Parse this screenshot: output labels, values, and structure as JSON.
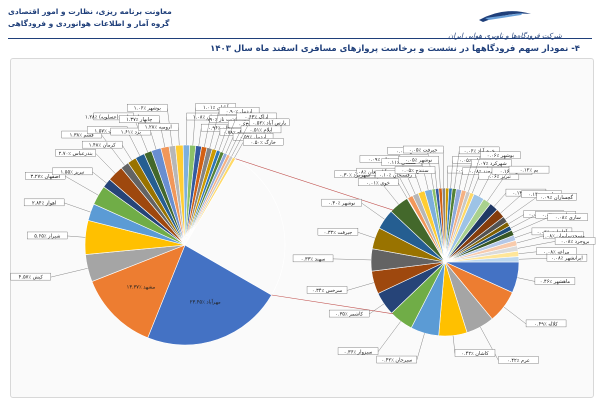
{
  "header": {
    "org_name": "شرکت فرودگاه‌ها و ناوبری هوایی ایران",
    "dept_line1": "معاونت برنامه ریزی، نظارت و امور اقتصادی",
    "dept_line2": "گروه آمار و اطلاعات هوانوردی و فرودگاهی",
    "title": "۴- نمودار سهم فرودگاهها در نشست و برخاست پروازهای مسافری اسفند ماه سال ۱۴۰۳"
  },
  "colors": {
    "header_text": "#1f3f7a",
    "mehrabad": "#4472c4",
    "mashhad": "#ed7d31",
    "kish": "#a5a5a5"
  },
  "chart_data": [
    {
      "type": "pie",
      "title": "",
      "slices": [
        {
          "label": "مهرآباد ٪۲۳.۴۵",
          "value": 23.45,
          "color": "#4472c4"
        },
        {
          "label": "مشهد ٪۱۳.۳۷",
          "value": 13.37,
          "color": "#ed7d31"
        },
        {
          "label": "کیش ٪۴.۵۷",
          "value": 4.57,
          "color": "#a5a5a5"
        },
        {
          "label": "شیراز ٪۵.۶۵",
          "value": 5.65,
          "color": "#ffc000"
        },
        {
          "label": "اهواز ٪۲.۸۴",
          "value": 2.84,
          "color": "#5b9bd5"
        },
        {
          "label": "اصفهان ٪۳.۲۷",
          "value": 3.27,
          "color": "#70ad47"
        },
        {
          "label": "تبریز ٪۱.۵۵",
          "value": 1.55,
          "color": "#264478"
        },
        {
          "label": "بندرعباس ٪۲.۷۰",
          "value": 2.7,
          "color": "#9e480e"
        },
        {
          "label": "قشم ٪۱.۳۸",
          "value": 1.38,
          "color": "#636363"
        },
        {
          "label": "کرمان ٪۱.۴۸",
          "value": 1.48,
          "color": "#997300"
        },
        {
          "label": "رشت ٪۱.۵۷",
          "value": 1.57,
          "color": "#255e91"
        },
        {
          "label": "خلیج فارس(عسلویه) ٪۱.۲۸",
          "value": 1.28,
          "color": "#43682b"
        },
        {
          "label": "یزد ٪۱.۶۱",
          "value": 1.61,
          "color": "#698ed0"
        },
        {
          "label": "چابهار ٪۱.۳۷",
          "value": 1.37,
          "color": "#f1975a"
        },
        {
          "label": "بوشهر ٪۱.۰۶",
          "value": 1.06,
          "color": "#b7b7b7"
        },
        {
          "label": "ارومیه ٪۱.۲۸",
          "value": 1.28,
          "color": "#ffcd33"
        },
        {
          "label": "زاهدان ٪۱.۰۸",
          "value": 1.08,
          "color": "#7cafdd"
        },
        {
          "label": "آبادان ٪۱.۰۱",
          "value": 1.01,
          "color": "#8cc168"
        },
        {
          "label": "زنجان ٪۰.۹۶",
          "value": 0.96,
          "color": "#335aa1"
        },
        {
          "label": "ساری - دشت ناز ٪۰.۹۰",
          "value": 0.9,
          "color": "#d26012"
        },
        {
          "label": "اردبیل ٪۰.۹۰",
          "value": 0.9,
          "color": "#848484"
        },
        {
          "label": "کرمانشاه ٪۰.۷۸",
          "value": 0.78,
          "color": "#cc9a00"
        },
        {
          "label": "لار ٪۰.۶۳",
          "value": 0.63,
          "color": "#2e75b6"
        },
        {
          "label": "اراک ٪۰.۶۳",
          "value": 0.63,
          "color": "#548235"
        },
        {
          "label": "اردبیل ٪۰.۵۹",
          "value": 0.59,
          "color": "#8faadc"
        },
        {
          "label": "ایلام ٪۰.۵۱",
          "value": 0.51,
          "color": "#f4b183"
        },
        {
          "label": "پارس آباد ٪۰.۵۲",
          "value": 0.52,
          "color": "#c9c9c9"
        },
        {
          "label": "خارگ ٪۰.۵۰",
          "value": 0.5,
          "color": "#ffd966"
        },
        {
          "label": "سایر فرودگاه‌ها",
          "value": 25.66,
          "color": "#cfd8ea"
        }
      ]
    },
    {
      "type": "pie",
      "title": "",
      "slices": [
        {
          "label": "ماهشهر ٪۰.۴۶",
          "value": 0.46,
          "color": "#4472c4"
        },
        {
          "label": "کلاله ٪۰.۴۹",
          "value": 0.49,
          "color": "#ed7d31"
        },
        {
          "label": "عرم ٪۰.۴۲",
          "value": 0.42,
          "color": "#a5a5a5"
        },
        {
          "label": "کاشان ٪۰.۴۲",
          "value": 0.42,
          "color": "#ffc000"
        },
        {
          "label": "سیرجان ٪۰.۴۲",
          "value": 0.42,
          "color": "#5b9bd5"
        },
        {
          "label": "سبزوار ٪۰.۳۶",
          "value": 0.36,
          "color": "#70ad47"
        },
        {
          "label": "کاشمر ٪۰.۳۵",
          "value": 0.35,
          "color": "#264478"
        },
        {
          "label": "سرخس ٪۰.۳۴",
          "value": 0.34,
          "color": "#9e480e"
        },
        {
          "label": "سهند ٪۰.۳۳",
          "value": 0.33,
          "color": "#636363"
        },
        {
          "label": "جیرفت ٪۰.۳۲",
          "value": 0.32,
          "color": "#997300"
        },
        {
          "label": "نوشهر ٪۰.۳۰",
          "value": 0.3,
          "color": "#255e91"
        },
        {
          "label": "شهرکرد ٪۰.۳۰",
          "value": 0.3,
          "color": "#43682b"
        },
        {
          "label": "خوی ٪۰.۰۱",
          "value": 0.01,
          "color": "#698ed0"
        },
        {
          "label": "پارس آباد مغان ٪۰.۰۸",
          "value": 0.08,
          "color": "#f1975a"
        },
        {
          "label": "مغان ٪۰.۰۹",
          "value": 0.09,
          "color": "#b7b7b7"
        },
        {
          "label": "رفسنجان ٪۰.۱۰",
          "value": 0.1,
          "color": "#ffcd33"
        },
        {
          "label": "گلستان ٪۰.۱۱",
          "value": 0.11,
          "color": "#7cafdd"
        },
        {
          "label": "ماکو ٪۰.۰۵",
          "value": 0.05,
          "color": "#8cc168"
        },
        {
          "label": "سنندج ٪۰.۰۵",
          "value": 0.05,
          "color": "#335aa1"
        },
        {
          "label": "نوشهر ٪۰.۰۵",
          "value": 0.05,
          "color": "#d26012"
        },
        {
          "label": "جیرفت ٪۰.۰۵",
          "value": 0.05,
          "color": "#848484"
        },
        {
          "label": "اراک ٪۰.۰۵",
          "value": 0.05,
          "color": "#cc9a00"
        },
        {
          "label": "همدان ٪۰.۰۵",
          "value": 0.05,
          "color": "#2e75b6"
        },
        {
          "label": "خرم آباد ٪۰.۰۶",
          "value": 0.06,
          "color": "#548235"
        },
        {
          "label": "بیرجند ٪۰.۰۸",
          "value": 0.08,
          "color": "#8faadc"
        },
        {
          "label": "شهرکرد ٪۰.۰۷",
          "value": 0.07,
          "color": "#f4b183"
        },
        {
          "label": "بوشهر ٪۰.۰۶",
          "value": 0.06,
          "color": "#c9c9c9"
        },
        {
          "label": "تبریز ٪۰.۰۶",
          "value": 0.06,
          "color": "#ffd966"
        },
        {
          "label": "لامرد ٪۰.۱۶",
          "value": 0.16,
          "color": "#9dc3e6"
        },
        {
          "label": "بم ٪۰.۱۲",
          "value": 0.12,
          "color": "#a9d18e"
        },
        {
          "label": "سنندج ٪۰.۱۳",
          "value": 0.13,
          "color": "#203864"
        },
        {
          "label": "یاسوج ٪۰.۱۴",
          "value": 0.14,
          "color": "#843c0c"
        },
        {
          "label": "گچساران ٪۰.۰۹",
          "value": 0.09,
          "color": "#525252"
        },
        {
          "label": "بندرلنگه ٪۰.۰۷",
          "value": 0.07,
          "color": "#7f6000"
        },
        {
          "label": "رامسر ٪۰.۰۷",
          "value": 0.07,
          "color": "#1f4e79"
        },
        {
          "label": "ساری ٪۰.۰۸",
          "value": 0.08,
          "color": "#385723"
        },
        {
          "label": "آغاجاری ٪۰.۰۸",
          "value": 0.08,
          "color": "#b4c7e7"
        },
        {
          "label": "مسجدسلیمان ٪۰.۰۸",
          "value": 0.08,
          "color": "#f8cbad"
        },
        {
          "label": "بروجرد ٪۰.۰۸",
          "value": 0.08,
          "color": "#dbdbdb"
        },
        {
          "label": "مراغه ٪۰.۰۸",
          "value": 0.08,
          "color": "#ffe699"
        },
        {
          "label": "ایرانشهر ٪۰.۰۸",
          "value": 0.08,
          "color": "#bdd7ee"
        }
      ]
    }
  ]
}
